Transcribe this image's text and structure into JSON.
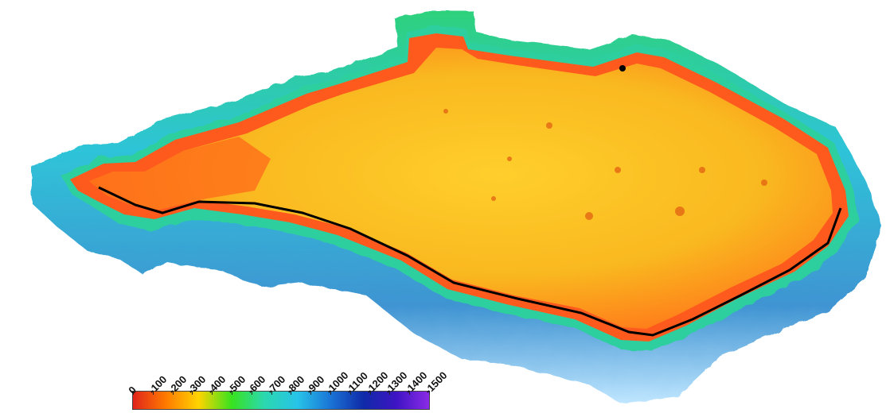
{
  "legend": {
    "ticks": [
      "0",
      "-100",
      "-200",
      "-300",
      "-400",
      "-500",
      "-600",
      "-700",
      "-800",
      "-900",
      "-1000",
      "-1100",
      "-1200",
      "-1300",
      "-1400",
      "-1500"
    ],
    "range": [
      0,
      -1500
    ],
    "colors": [
      "#e0241c",
      "#ff7a00",
      "#ffd400",
      "#38e21e",
      "#2bd8b0",
      "#27c3e8",
      "#1a74d6",
      "#0f2aa8",
      "#3e14c4",
      "#8a2be6"
    ]
  },
  "map": {
    "colors": {
      "plateau": "#f5b51c",
      "plateau_light": "#ffd23a",
      "rim": "#ff5a1e",
      "edge_line": "#000000",
      "scarp_green": "#2fd27c",
      "slope_cyan": "#2ec4d8",
      "deep_blue": "#2a7fc4",
      "shelf_white": "#eaf6ff"
    }
  }
}
